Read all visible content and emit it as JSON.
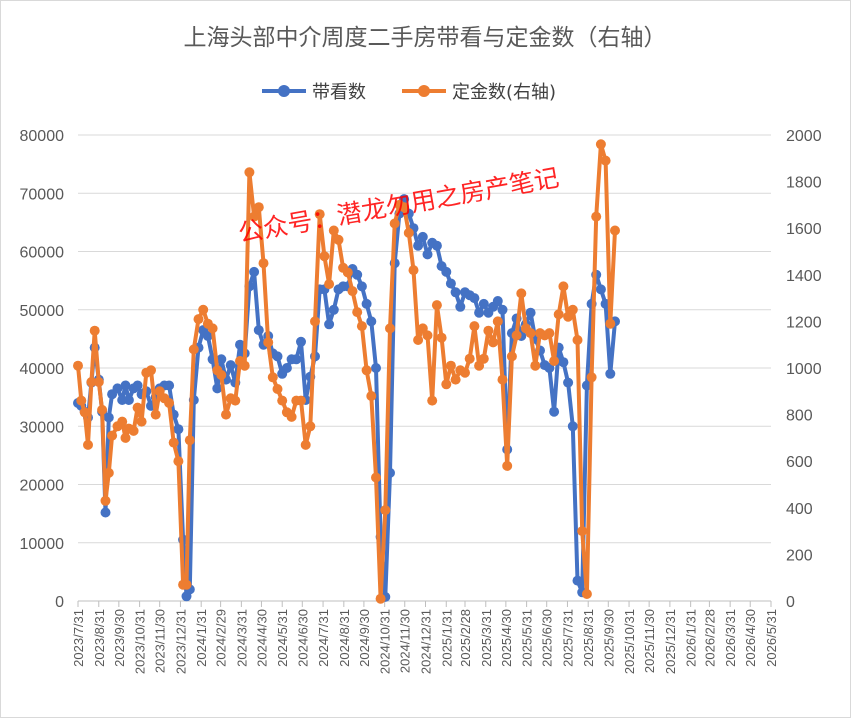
{
  "chart_data": {
    "type": "line",
    "title": "上海头部中介周度二手房带看与定金数（右轴）",
    "watermark": "公众号：潜龙勿用之房产笔记",
    "x_tick_labels": [
      "2023/7/31",
      "2023/8/31",
      "2023/9/30",
      "2023/10/31",
      "2023/11/30",
      "2023/12/31",
      "2024/1/31",
      "2024/2/29",
      "2024/3/31",
      "2024/4/30",
      "2024/5/31",
      "2024/6/30",
      "2024/7/31",
      "2024/8/31",
      "2024/9/30",
      "2024/10/31",
      "2024/11/30",
      "2024/12/31",
      "2025/1/31",
      "2025/2/28",
      "2025/3/31",
      "2025/4/30",
      "2025/5/31",
      "2025/6/30",
      "2025/7/31",
      "2025/8/31",
      "2025/9/30",
      "2025/10/31",
      "2025/11/30",
      "2025/12/31",
      "2026/1/31",
      "2026/2/28",
      "2026/3/31",
      "2026/4/30",
      "2026/5/31"
    ],
    "x_start": "2023/7/31",
    "x_end": "2026/5/31",
    "y_left": {
      "min": 0,
      "max": 80000,
      "ticks": [
        "0",
        "10000",
        "20000",
        "30000",
        "40000",
        "50000",
        "60000",
        "70000",
        "80000"
      ]
    },
    "y_right": {
      "min": 0,
      "max": 2000,
      "ticks": [
        "0",
        "200",
        "400",
        "600",
        "800",
        "1000",
        "1200",
        "1400",
        "1600",
        "1800",
        "2000"
      ]
    },
    "legend_position": "top-center",
    "grid": "horizontal",
    "series": [
      {
        "name": "带看数",
        "axis": "left",
        "color": "#4472C4",
        "points": [
          [
            "2023-07-31",
            34000
          ],
          [
            "2023-08-05",
            33500
          ],
          [
            "2023-08-10",
            32500
          ],
          [
            "2023-08-15",
            31500
          ],
          [
            "2023-08-20",
            37500
          ],
          [
            "2023-08-25",
            43500
          ],
          [
            "2023-08-31",
            38000
          ],
          [
            "2023-09-05",
            32500
          ],
          [
            "2023-09-10",
            15200
          ],
          [
            "2023-09-15",
            31500
          ],
          [
            "2023-09-20",
            35500
          ],
          [
            "2023-09-28",
            36500
          ],
          [
            "2023-10-05",
            34500
          ],
          [
            "2023-10-10",
            37000
          ],
          [
            "2023-10-15",
            34500
          ],
          [
            "2023-10-22",
            36500
          ],
          [
            "2023-10-28",
            37000
          ],
          [
            "2023-11-03",
            35500
          ],
          [
            "2023-11-10",
            36000
          ],
          [
            "2023-11-17",
            33500
          ],
          [
            "2023-11-24",
            35000
          ],
          [
            "2023-11-30",
            36500
          ],
          [
            "2023-12-07",
            37000
          ],
          [
            "2023-12-14",
            37000
          ],
          [
            "2023-12-21",
            32000
          ],
          [
            "2023-12-28",
            29500
          ],
          [
            "2024-01-04",
            10500
          ],
          [
            "2024-01-09",
            800
          ],
          [
            "2024-01-14",
            2000
          ],
          [
            "2024-01-20",
            34500
          ],
          [
            "2024-01-27",
            43500
          ],
          [
            "2024-02-03",
            46500
          ],
          [
            "2024-02-10",
            45500
          ],
          [
            "2024-02-17",
            41500
          ],
          [
            "2024-02-24",
            36500
          ],
          [
            "2024-03-01",
            41500
          ],
          [
            "2024-03-08",
            38000
          ],
          [
            "2024-03-15",
            40500
          ],
          [
            "2024-03-22",
            37500
          ],
          [
            "2024-03-29",
            44000
          ],
          [
            "2024-04-05",
            42500
          ],
          [
            "2024-04-12",
            54000
          ],
          [
            "2024-04-19",
            56500
          ],
          [
            "2024-04-26",
            46500
          ],
          [
            "2024-05-03",
            44000
          ],
          [
            "2024-05-10",
            45500
          ],
          [
            "2024-05-17",
            42500
          ],
          [
            "2024-05-24",
            42000
          ],
          [
            "2024-05-31",
            39000
          ],
          [
            "2024-06-07",
            40000
          ],
          [
            "2024-06-14",
            41500
          ],
          [
            "2024-06-21",
            41500
          ],
          [
            "2024-06-28",
            44500
          ],
          [
            "2024-07-05",
            34500
          ],
          [
            "2024-07-12",
            38500
          ],
          [
            "2024-07-19",
            42000
          ],
          [
            "2024-07-26",
            53500
          ],
          [
            "2024-08-02",
            53500
          ],
          [
            "2024-08-09",
            47500
          ],
          [
            "2024-08-16",
            50000
          ],
          [
            "2024-08-23",
            53500
          ],
          [
            "2024-08-30",
            54000
          ],
          [
            "2024-09-06",
            54000
          ],
          [
            "2024-09-13",
            57000
          ],
          [
            "2024-09-20",
            56000
          ],
          [
            "2024-09-27",
            54000
          ],
          [
            "2024-10-04",
            51000
          ],
          [
            "2024-10-11",
            48000
          ],
          [
            "2024-10-18",
            40000
          ],
          [
            "2024-10-25",
            11000
          ],
          [
            "2024-11-01",
            700
          ],
          [
            "2024-11-08",
            22000
          ],
          [
            "2024-11-15",
            58000
          ],
          [
            "2024-11-22",
            66500
          ],
          [
            "2024-11-29",
            69000
          ],
          [
            "2024-12-06",
            66500
          ],
          [
            "2024-12-13",
            64000
          ],
          [
            "2024-12-20",
            61000
          ],
          [
            "2024-12-27",
            62500
          ],
          [
            "2025-01-03",
            59500
          ],
          [
            "2025-01-10",
            61500
          ],
          [
            "2025-01-17",
            61000
          ],
          [
            "2025-01-24",
            57500
          ],
          [
            "2025-01-31",
            56500
          ],
          [
            "2025-02-07",
            54500
          ],
          [
            "2025-02-14",
            53000
          ],
          [
            "2025-02-21",
            50500
          ],
          [
            "2025-02-28",
            53000
          ],
          [
            "2025-03-07",
            52500
          ],
          [
            "2025-03-14",
            52000
          ],
          [
            "2025-03-21",
            49500
          ],
          [
            "2025-03-28",
            51000
          ],
          [
            "2025-04-04",
            49500
          ],
          [
            "2025-04-11",
            50500
          ],
          [
            "2025-04-18",
            51500
          ],
          [
            "2025-04-25",
            50000
          ],
          [
            "2025-05-02",
            26000
          ],
          [
            "2025-05-09",
            46000
          ],
          [
            "2025-05-16",
            48500
          ],
          [
            "2025-05-23",
            45500
          ],
          [
            "2025-05-30",
            47500
          ],
          [
            "2025-06-06",
            49500
          ],
          [
            "2025-06-13",
            45000
          ],
          [
            "2025-06-20",
            43000
          ],
          [
            "2025-06-27",
            40500
          ],
          [
            "2025-07-04",
            40000
          ],
          [
            "2025-07-11",
            32500
          ],
          [
            "2025-07-18",
            43500
          ],
          [
            "2025-07-25",
            41000
          ],
          [
            "2025-08-01",
            37500
          ],
          [
            "2025-08-08",
            30000
          ],
          [
            "2025-08-15",
            3500
          ],
          [
            "2025-08-22",
            1500
          ],
          [
            "2025-08-29",
            37000
          ],
          [
            "2025-09-05",
            51000
          ],
          [
            "2025-09-12",
            56000
          ],
          [
            "2025-09-19",
            53500
          ],
          [
            "2025-09-26",
            51000
          ],
          [
            "2025-10-03",
            39000
          ],
          [
            "2025-10-10",
            48000
          ]
        ]
      },
      {
        "name": "定金数(右轴)",
        "axis": "right",
        "color": "#ED7D31",
        "points": [
          [
            "2023-07-31",
            1010
          ],
          [
            "2023-08-05",
            860
          ],
          [
            "2023-08-10",
            810
          ],
          [
            "2023-08-15",
            670
          ],
          [
            "2023-08-20",
            940
          ],
          [
            "2023-08-25",
            1160
          ],
          [
            "2023-08-31",
            940
          ],
          [
            "2023-09-05",
            820
          ],
          [
            "2023-09-10",
            430
          ],
          [
            "2023-09-15",
            550
          ],
          [
            "2023-09-20",
            710
          ],
          [
            "2023-09-28",
            750
          ],
          [
            "2023-10-05",
            770
          ],
          [
            "2023-10-10",
            700
          ],
          [
            "2023-10-15",
            740
          ],
          [
            "2023-10-22",
            730
          ],
          [
            "2023-10-28",
            830
          ],
          [
            "2023-11-03",
            770
          ],
          [
            "2023-11-10",
            980
          ],
          [
            "2023-11-17",
            990
          ],
          [
            "2023-11-24",
            800
          ],
          [
            "2023-11-30",
            900
          ],
          [
            "2023-12-07",
            870
          ],
          [
            "2023-12-14",
            850
          ],
          [
            "2023-12-21",
            680
          ],
          [
            "2023-12-28",
            600
          ],
          [
            "2024-01-04",
            70
          ],
          [
            "2024-01-09",
            70
          ],
          [
            "2024-01-14",
            690
          ],
          [
            "2024-01-20",
            1080
          ],
          [
            "2024-01-27",
            1210
          ],
          [
            "2024-02-03",
            1250
          ],
          [
            "2024-02-10",
            1190
          ],
          [
            "2024-02-17",
            1170
          ],
          [
            "2024-02-24",
            990
          ],
          [
            "2024-03-01",
            970
          ],
          [
            "2024-03-08",
            800
          ],
          [
            "2024-03-15",
            870
          ],
          [
            "2024-03-22",
            860
          ],
          [
            "2024-03-29",
            1030
          ],
          [
            "2024-04-05",
            1010
          ],
          [
            "2024-04-12",
            1840
          ],
          [
            "2024-04-19",
            1650
          ],
          [
            "2024-04-26",
            1690
          ],
          [
            "2024-05-03",
            1450
          ],
          [
            "2024-05-10",
            1110
          ],
          [
            "2024-05-17",
            960
          ],
          [
            "2024-05-24",
            910
          ],
          [
            "2024-05-31",
            860
          ],
          [
            "2024-06-07",
            810
          ],
          [
            "2024-06-14",
            790
          ],
          [
            "2024-06-21",
            860
          ],
          [
            "2024-06-28",
            860
          ],
          [
            "2024-07-05",
            670
          ],
          [
            "2024-07-12",
            750
          ],
          [
            "2024-07-19",
            1200
          ],
          [
            "2024-07-26",
            1660
          ],
          [
            "2024-08-02",
            1480
          ],
          [
            "2024-08-09",
            1360
          ],
          [
            "2024-08-16",
            1590
          ],
          [
            "2024-08-23",
            1550
          ],
          [
            "2024-08-30",
            1430
          ],
          [
            "2024-09-06",
            1410
          ],
          [
            "2024-09-13",
            1330
          ],
          [
            "2024-09-20",
            1240
          ],
          [
            "2024-09-27",
            1180
          ],
          [
            "2024-10-04",
            990
          ],
          [
            "2024-10-11",
            880
          ],
          [
            "2024-10-18",
            530
          ],
          [
            "2024-10-25",
            10
          ],
          [
            "2024-11-01",
            390
          ],
          [
            "2024-11-08",
            1170
          ],
          [
            "2024-11-15",
            1620
          ],
          [
            "2024-11-22",
            1700
          ],
          [
            "2024-11-29",
            1690
          ],
          [
            "2024-12-06",
            1580
          ],
          [
            "2024-12-13",
            1420
          ],
          [
            "2024-12-20",
            1120
          ],
          [
            "2024-12-27",
            1170
          ],
          [
            "2025-01-03",
            1140
          ],
          [
            "2025-01-10",
            860
          ],
          [
            "2025-01-17",
            1270
          ],
          [
            "2025-01-24",
            1130
          ],
          [
            "2025-01-31",
            930
          ],
          [
            "2025-02-07",
            1010
          ],
          [
            "2025-02-14",
            950
          ],
          [
            "2025-02-21",
            990
          ],
          [
            "2025-02-28",
            980
          ],
          [
            "2025-03-07",
            1040
          ],
          [
            "2025-03-14",
            1180
          ],
          [
            "2025-03-21",
            1010
          ],
          [
            "2025-03-28",
            1040
          ],
          [
            "2025-04-04",
            1160
          ],
          [
            "2025-04-11",
            1110
          ],
          [
            "2025-04-18",
            1200
          ],
          [
            "2025-04-25",
            950
          ],
          [
            "2025-05-02",
            580
          ],
          [
            "2025-05-09",
            1050
          ],
          [
            "2025-05-16",
            1140
          ],
          [
            "2025-05-23",
            1320
          ],
          [
            "2025-05-30",
            1170
          ],
          [
            "2025-06-06",
            1150
          ],
          [
            "2025-06-13",
            1010
          ],
          [
            "2025-06-20",
            1150
          ],
          [
            "2025-06-27",
            1140
          ],
          [
            "2025-07-04",
            1150
          ],
          [
            "2025-07-11",
            1030
          ],
          [
            "2025-07-18",
            1230
          ],
          [
            "2025-07-25",
            1350
          ],
          [
            "2025-08-01",
            1220
          ],
          [
            "2025-08-08",
            1250
          ],
          [
            "2025-08-15",
            1120
          ],
          [
            "2025-08-22",
            300
          ],
          [
            "2025-08-29",
            30
          ],
          [
            "2025-09-05",
            960
          ],
          [
            "2025-09-12",
            1650
          ],
          [
            "2025-09-19",
            1960
          ],
          [
            "2025-09-26",
            1890
          ],
          [
            "2025-10-03",
            1190
          ],
          [
            "2025-10-10",
            1590
          ]
        ]
      }
    ]
  }
}
